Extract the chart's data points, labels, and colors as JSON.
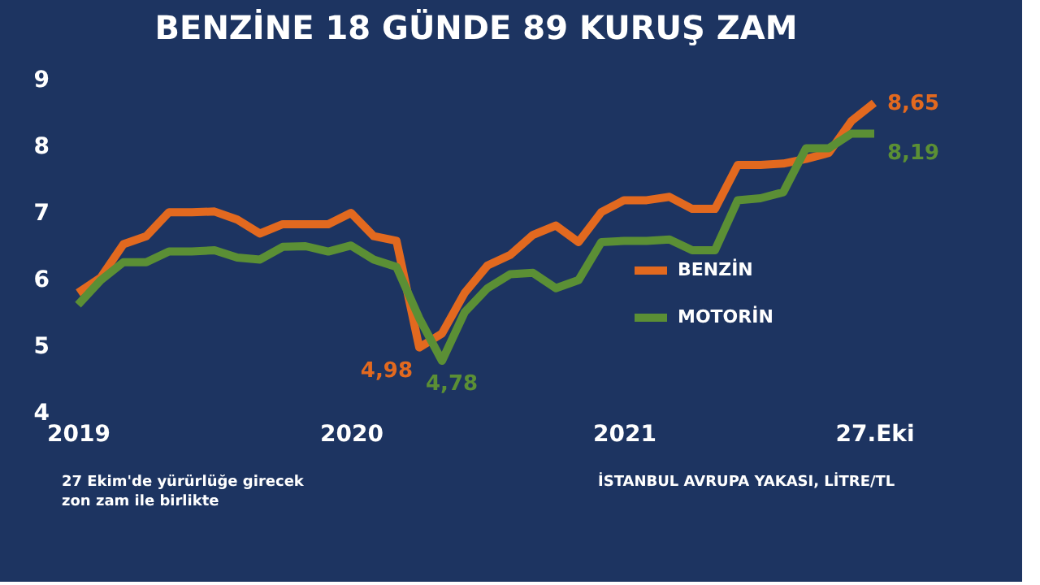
{
  "chart_data": {
    "type": "line",
    "title": "BENZİNE 18 GÜNDE 89 KURUŞ ZAM",
    "categories": [
      "2019",
      null,
      null,
      null,
      null,
      null,
      null,
      null,
      null,
      null,
      null,
      null,
      "2020",
      null,
      null,
      null,
      null,
      null,
      null,
      null,
      null,
      null,
      null,
      null,
      "2021",
      null,
      null,
      null,
      null,
      null,
      null,
      null,
      null,
      null,
      null,
      "27.Eki"
    ],
    "series": [
      {
        "name": "BENZİN",
        "color": "#e2691f",
        "values": [
          5.8,
          6.03,
          6.53,
          6.65,
          7.01,
          7.01,
          7.02,
          6.9,
          6.69,
          6.83,
          6.83,
          6.83,
          7.0,
          6.65,
          6.58,
          4.98,
          5.19,
          5.8,
          6.21,
          6.37,
          6.67,
          6.81,
          6.56,
          7.01,
          7.19,
          7.19,
          7.24,
          7.06,
          7.06,
          7.72,
          7.72,
          7.74,
          7.81,
          7.9,
          8.38,
          8.65
        ],
        "value_labels": [
          null,
          null,
          null,
          null,
          null,
          null,
          null,
          null,
          null,
          null,
          null,
          null,
          null,
          null,
          null,
          "4,98",
          null,
          null,
          null,
          null,
          null,
          null,
          null,
          null,
          null,
          null,
          null,
          null,
          null,
          null,
          null,
          null,
          null,
          null,
          null,
          "8,65"
        ]
      },
      {
        "name": "MOTORİN",
        "color": "#5b8f35",
        "values": [
          5.62,
          5.99,
          6.26,
          6.26,
          6.42,
          6.42,
          6.44,
          6.33,
          6.3,
          6.49,
          6.5,
          6.42,
          6.51,
          6.3,
          6.19,
          5.42,
          4.78,
          5.51,
          5.87,
          6.08,
          6.1,
          5.87,
          5.99,
          6.56,
          6.58,
          6.58,
          6.6,
          6.44,
          6.44,
          7.19,
          7.22,
          7.31,
          7.97,
          7.97,
          8.19,
          8.19
        ],
        "value_labels": [
          null,
          null,
          null,
          null,
          null,
          null,
          null,
          null,
          null,
          null,
          null,
          null,
          null,
          null,
          null,
          null,
          "4,78",
          null,
          null,
          null,
          null,
          null,
          null,
          null,
          null,
          null,
          null,
          null,
          null,
          null,
          null,
          null,
          null,
          null,
          null,
          "8,19"
        ]
      }
    ],
    "ylim": [
      4,
      9
    ],
    "yticks": [
      4,
      5,
      6,
      7,
      8,
      9
    ],
    "grid": false,
    "legend": "right",
    "marker": "none",
    "line_style": "solid",
    "annotations": [
      "27 Ekim'de yürürlüğe girecek zon zam ile birlikte",
      "İSTANBUL AVRUPA YAKASI, LİTRE/TL"
    ]
  }
}
